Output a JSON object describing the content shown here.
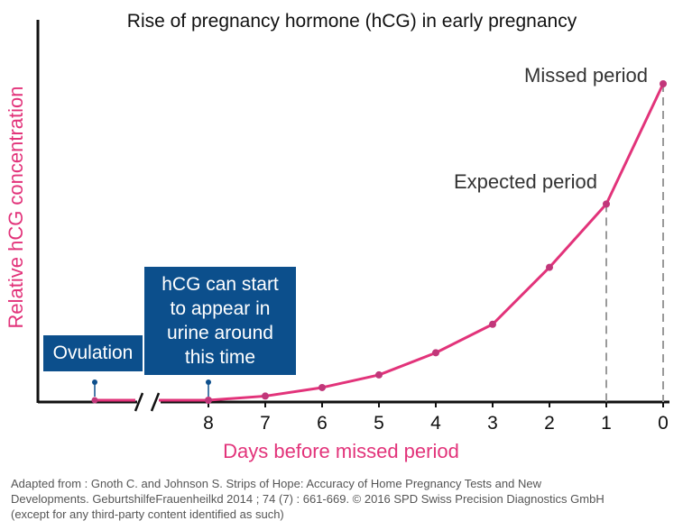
{
  "chart_data": {
    "type": "line",
    "title": "Rise of pregnancy hormone (hCG) in early pregnancy",
    "xlabel": "Days before missed period",
    "ylabel": "Relative hCG concentration",
    "x_ticks": [
      "8",
      "7",
      "6",
      "5",
      "4",
      "3",
      "2",
      "1",
      "0"
    ],
    "series": [
      {
        "name": "hCG",
        "color": "#e2337a",
        "points": [
          {
            "x": 8,
            "y": 0
          },
          {
            "x": 7,
            "y": 1.3
          },
          {
            "x": 6,
            "y": 4
          },
          {
            "x": 5,
            "y": 8
          },
          {
            "x": 4,
            "y": 15
          },
          {
            "x": 3,
            "y": 24
          },
          {
            "x": 2,
            "y": 42
          },
          {
            "x": 1,
            "y": 62
          },
          {
            "x": 0,
            "y": 100
          }
        ]
      }
    ],
    "ylim": [
      0,
      100
    ],
    "axis_break": true,
    "annotations": {
      "missed_period": {
        "label": "Missed period",
        "x": 0
      },
      "expected_period": {
        "label": "Expected period",
        "x": 1
      },
      "ovulation": {
        "label": "Ovulation"
      },
      "hcg_appear": {
        "lines": [
          "hCG can start",
          "to appear in",
          "urine around",
          "this time"
        ],
        "x": 8
      }
    }
  },
  "colors": {
    "accent": "#e2337a",
    "box": "#0c4f8c",
    "axis": "#111111",
    "dashed": "#9a9a9a"
  },
  "footer": {
    "line1": "Adapted from : Gnoth C. and Johnson S. Strips of Hope: Accuracy of Home Pregnancy Tests and New",
    "line2": "Developments. GeburtshilfeFrauenheilkd 2014 ; 74 (7) : 661-669. © 2016 SPD Swiss Precision Diagnostics GmbH",
    "line3": "(except for any third-party content identified as such)"
  }
}
